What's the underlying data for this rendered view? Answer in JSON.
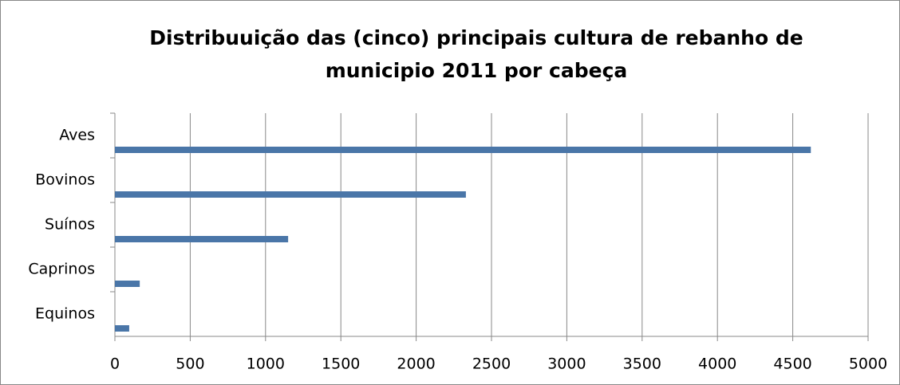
{
  "chart_data": {
    "type": "barh",
    "title": [
      "Distribuuição das (cinco) principais cultura de rebanho de",
      "municipio 2011 por cabeça"
    ],
    "categories": [
      "Aves",
      "Bovinos",
      "Suínos",
      "Caprinos",
      "Equinos"
    ],
    "values": [
      4620,
      2330,
      1150,
      165,
      95
    ],
    "color": "#4a76a8",
    "xlim": [
      0,
      5000
    ],
    "xticks": [
      0,
      500,
      1000,
      1500,
      2000,
      2500,
      3000,
      3500,
      4000,
      4500,
      5000
    ],
    "grid": true
  }
}
